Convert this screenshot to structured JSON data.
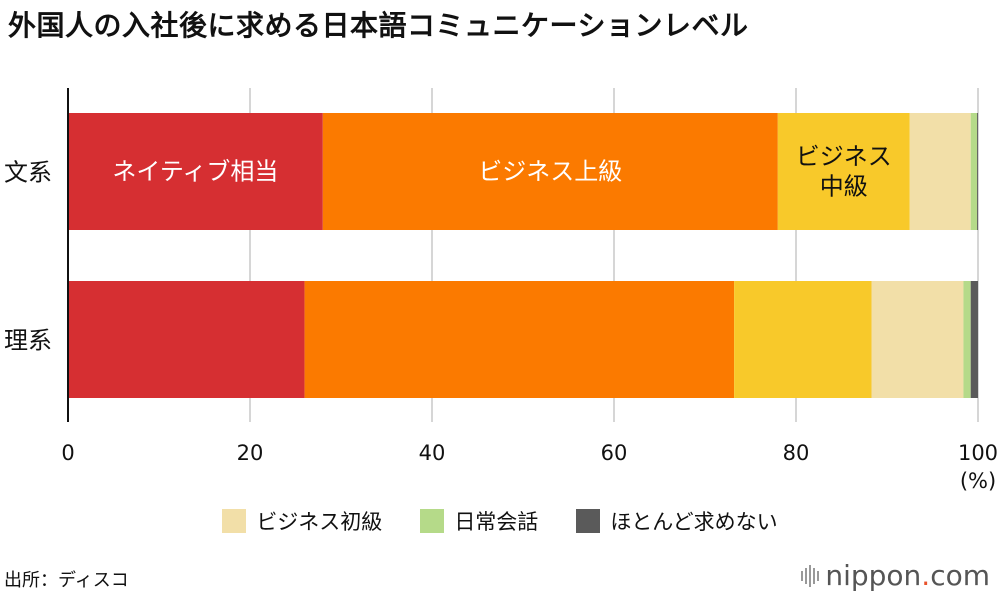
{
  "title": "外国人の入社後に求める日本語コミュニケーションレベル",
  "source": "出所：ディスコ",
  "logo": {
    "main": "nippon",
    "dot": ".",
    "suffix": "com"
  },
  "colors": {
    "native": "#d62f32",
    "biz_upper": "#fb7a00",
    "biz_mid": "#f8c92a",
    "biz_basic": "#f2dfa8",
    "daily": "#b5da89",
    "none": "#5a5a5a",
    "grid": "#c8c8c8",
    "axis": "#111111"
  },
  "chart_data": {
    "type": "bar",
    "orientation": "horizontal",
    "stacked": true,
    "categories": [
      "文系",
      "理系"
    ],
    "series": [
      {
        "name": "ネイティブ相当",
        "values": [
          28.0,
          26.0
        ],
        "color_key": "native",
        "label": "ネイティブ相当"
      },
      {
        "name": "ビジネス上級",
        "values": [
          50.0,
          47.2
        ],
        "color_key": "biz_upper",
        "label": "ビジネス上級"
      },
      {
        "name": "ビジネス中級",
        "values": [
          14.5,
          15.1
        ],
        "color_key": "biz_mid",
        "label": "ビジネス\n中級"
      },
      {
        "name": "ビジネス初級",
        "values": [
          6.7,
          10.1
        ],
        "color_key": "biz_basic"
      },
      {
        "name": "日常会話",
        "values": [
          0.7,
          0.8
        ],
        "color_key": "daily"
      },
      {
        "name": "ほとんど求めない",
        "values": [
          0.1,
          0.8
        ],
        "color_key": "none"
      }
    ],
    "xlim": [
      0,
      100
    ],
    "xticks": [
      "0",
      "20",
      "40",
      "60",
      "80",
      "100"
    ],
    "xunit": "(%)",
    "grid": true,
    "legend": [
      {
        "name": "ビジネス初級",
        "color_key": "biz_basic"
      },
      {
        "name": "日常会話",
        "color_key": "daily"
      },
      {
        "name": "ほとんど求めない",
        "color_key": "none"
      }
    ]
  }
}
